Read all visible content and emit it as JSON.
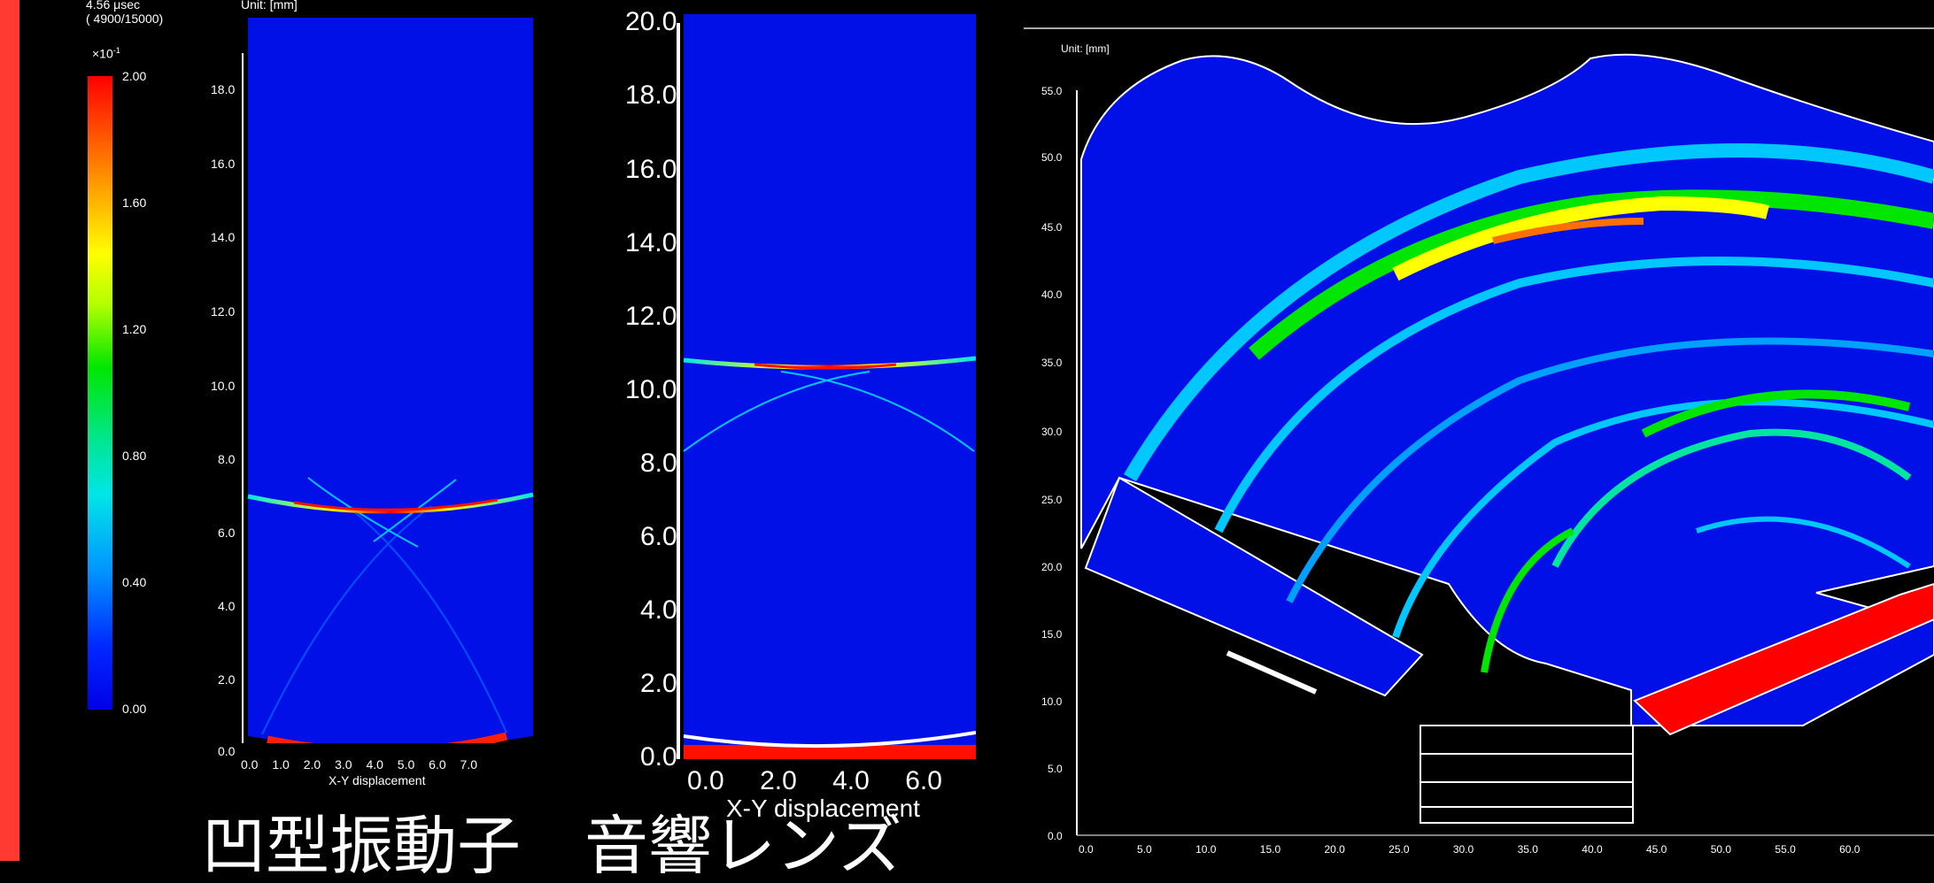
{
  "status": {
    "time": "4.56 μsec",
    "steps": "( 4900/15000)",
    "scale": "×10",
    "scale_exp": "-1"
  },
  "colorbar": {
    "ticks": [
      "2.00",
      "1.60",
      "1.20",
      "0.80",
      "0.40",
      "0.00"
    ]
  },
  "panel1": {
    "unit": "Unit: [mm]",
    "yticks": [
      "18.0",
      "16.0",
      "14.0",
      "12.0",
      "10.0",
      "8.0",
      "6.0",
      "4.0",
      "2.0",
      "0.0"
    ],
    "xticks": [
      "0.0",
      "1.0",
      "2.0",
      "3.0",
      "4.0",
      "5.0",
      "6.0",
      "7.0"
    ],
    "xlabel": "X-Y displacement"
  },
  "panel2": {
    "yticks": [
      "20.0",
      "18.0",
      "16.0",
      "14.0",
      "12.0",
      "10.0",
      "8.0",
      "6.0",
      "4.0",
      "2.0",
      "0.0"
    ],
    "xticks": [
      "0.0",
      "2.0",
      "4.0",
      "6.0"
    ],
    "xlabel": "X-Y displacement"
  },
  "panel3": {
    "unit": "Unit: [mm]",
    "yticks": [
      "55.0",
      "50.0",
      "45.0",
      "40.0",
      "35.0",
      "30.0",
      "25.0",
      "20.0",
      "15.0",
      "10.0",
      "5.0",
      "0.0"
    ],
    "xticks": [
      "0.0",
      "5.0",
      "10.0",
      "15.0",
      "20.0",
      "25.0",
      "30.0",
      "35.0",
      "40.0",
      "45.0",
      "50.0",
      "55.0",
      "60.0"
    ]
  },
  "caption": "凹型振動子　音響レンズ",
  "colors": {
    "accent_bar": "#ff3a33",
    "field_background": "#0010e6",
    "hot": "#ff0000",
    "warm": "#ffff00",
    "mid": "#00e600",
    "cool": "#00e6e6"
  }
}
